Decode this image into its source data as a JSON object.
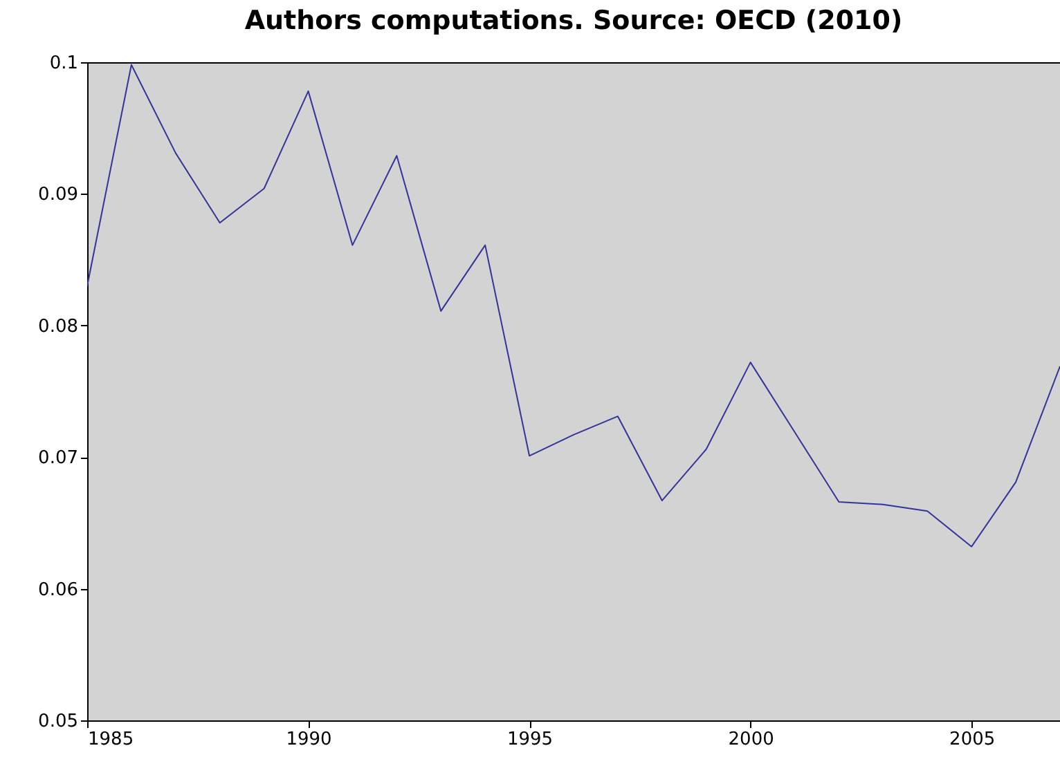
{
  "chart_data": {
    "type": "line",
    "title": "Authors computations. Source: OECD (2010)",
    "x": [
      1985,
      1986,
      1987,
      1988,
      1989,
      1990,
      1991,
      1992,
      1993,
      1994,
      1995,
      1996,
      1997,
      1998,
      1999,
      2000,
      2001,
      2002,
      2003,
      2004,
      2005,
      2006,
      2007
    ],
    "series": [
      {
        "color": "#333399",
        "values": [
          0.083,
          0.0998,
          0.0931,
          0.0878,
          0.0904,
          0.0978,
          0.0861,
          0.0929,
          0.0811,
          0.0861,
          0.0701,
          0.0717,
          0.0731,
          0.0667,
          0.0706,
          0.0772,
          0.0719,
          0.0666,
          0.0664,
          0.0659,
          0.0632,
          0.0681,
          0.0769
        ]
      }
    ],
    "xlim": [
      1985,
      2007
    ],
    "xticks": [
      1985,
      1990,
      1995,
      2000,
      2005
    ],
    "ylim": [
      0.05,
      0.1
    ],
    "yticks": [
      0.05,
      0.06,
      0.07,
      0.08,
      0.09,
      0.1
    ],
    "grid": false,
    "legend": false,
    "marker": "none",
    "line_style": "solid"
  }
}
